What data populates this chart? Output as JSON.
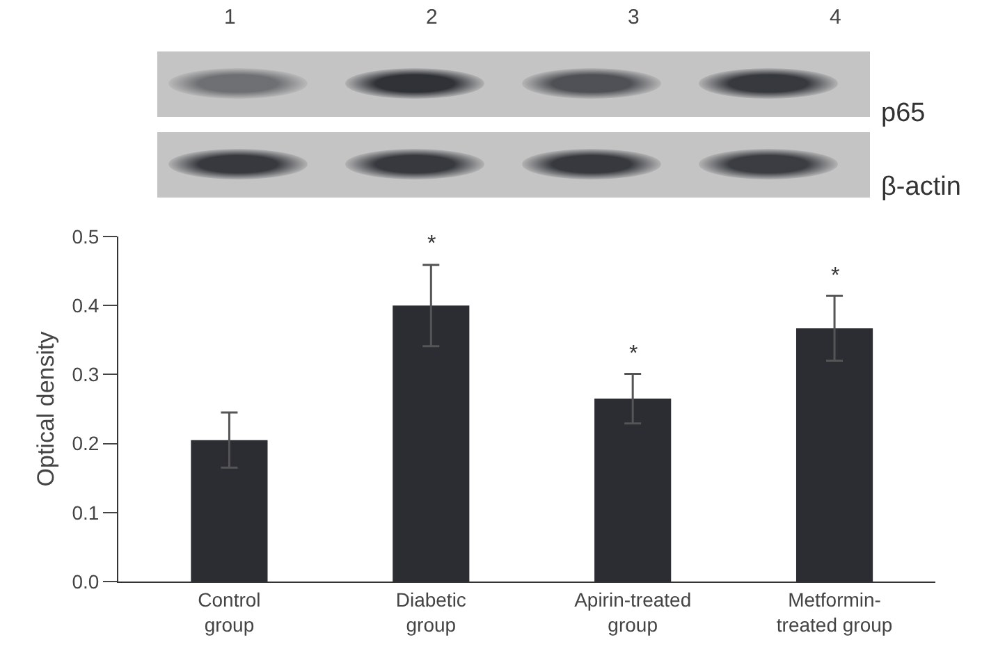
{
  "chart_data": {
    "type": "bar",
    "ylabel": "Optical density",
    "categories": [
      "Control\ngroup",
      "Diabetic\ngroup",
      "Apirin-treated\ngroup",
      "Metformin-\ntreated group"
    ],
    "values": [
      0.205,
      0.4,
      0.265,
      0.367
    ],
    "errors": [
      0.04,
      0.059,
      0.036,
      0.047
    ],
    "color": "#2b2d33",
    "ylim": [
      0,
      0.5
    ],
    "yticks": [
      {
        "value": 0,
        "label": "0.0"
      },
      0.1,
      0.2,
      0.3,
      0.4,
      0.5
    ],
    "grid": false,
    "annotations": [
      "1",
      "2",
      "3",
      "4",
      "p65",
      "β-actin",
      {
        "text": "*",
        "x": "Diabetic\ngroup",
        "y": 0.459
      },
      {
        "text": "*",
        "x": "Apirin-treated\ngroup",
        "y": 0.301
      },
      {
        "text": "*",
        "x": "Metformin-\ntreated group",
        "y": 0.414
      }
    ]
  }
}
